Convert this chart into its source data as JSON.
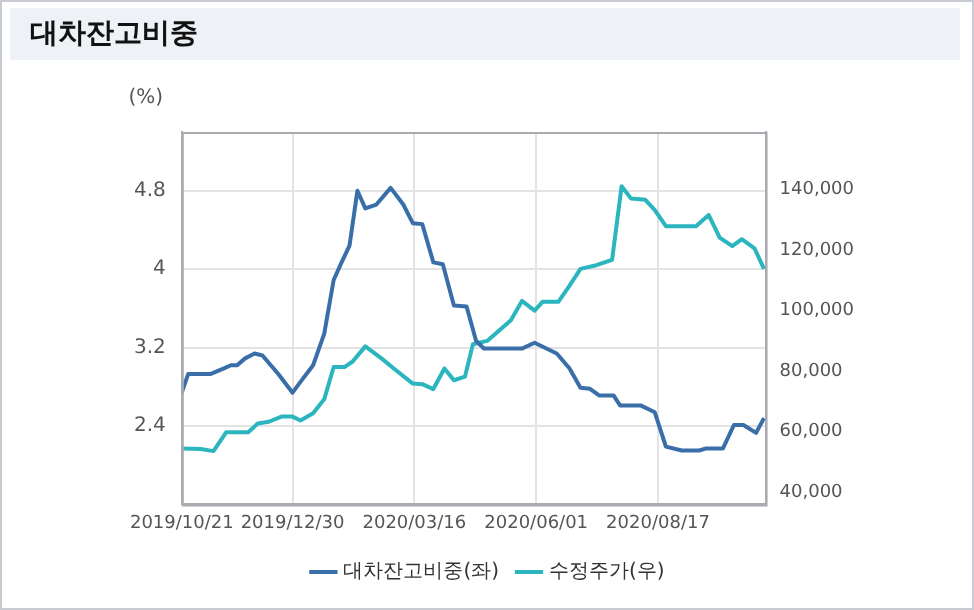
{
  "chart_data": {
    "type": "line",
    "title": "대차잔고비중",
    "ylabel": "(%)",
    "xlim": [
      "2019-10-21",
      "2020-10-24"
    ],
    "xticks": [
      {
        "value": "2019-10-21",
        "label": "2019/10/21"
      },
      {
        "value": "2019-12-30",
        "label": "2019/12/30"
      },
      {
        "value": "2020-03-16",
        "label": "2020/03/16"
      },
      {
        "value": "2020-06-01",
        "label": "2020/06/01"
      },
      {
        "value": "2020-08-17",
        "label": "2020/08/17"
      }
    ],
    "ylim": [
      1.6,
      5.4
    ],
    "yticks": [
      2.4,
      3.2,
      4,
      4.8
    ],
    "y2lim": [
      36000,
      159000
    ],
    "y2ticks": [
      {
        "value": 40000,
        "label": "40,000"
      },
      {
        "value": 60000,
        "label": "60,000"
      },
      {
        "value": 80000,
        "label": "80,000"
      },
      {
        "value": 100000,
        "label": "100,000"
      },
      {
        "value": 120000,
        "label": "120,000"
      },
      {
        "value": 140000,
        "label": "140,000"
      }
    ],
    "grid": true,
    "legend": "bottom",
    "marker": "none",
    "line_style": "solid",
    "series": [
      {
        "name": "대차잔고비중(좌)",
        "color": "#3a6ea8",
        "x": [
          "2019-10-21",
          "2019-10-25",
          "2019-11-08",
          "2019-11-17",
          "2019-11-21",
          "2019-11-25",
          "2019-11-30",
          "2019-12-06",
          "2019-12-11",
          "2019-12-21",
          "2019-12-30",
          "2020-01-04",
          "2020-01-12",
          "2020-01-19",
          "2020-01-25",
          "2020-01-30",
          "2020-02-04",
          "2020-02-09",
          "2020-02-14",
          "2020-02-21",
          "2020-03-01",
          "2020-03-09",
          "2020-03-15",
          "2020-03-21",
          "2020-03-28",
          "2020-04-03",
          "2020-04-10",
          "2020-04-18",
          "2020-04-24",
          "2020-04-29",
          "2020-05-10",
          "2020-05-23",
          "2020-05-31",
          "2020-06-14",
          "2020-06-22",
          "2020-06-29",
          "2020-07-05",
          "2020-07-11",
          "2020-07-20",
          "2020-07-24",
          "2020-08-06",
          "2020-08-15",
          "2020-08-22",
          "2020-09-01",
          "2020-09-12",
          "2020-09-16",
          "2020-09-27",
          "2020-10-04",
          "2020-10-10",
          "2020-10-18",
          "2020-10-23"
        ],
        "values": [
          2.74,
          2.93,
          2.93,
          2.99,
          3.02,
          3.02,
          3.09,
          3.14,
          3.12,
          2.93,
          2.74,
          2.85,
          3.02,
          3.34,
          3.89,
          4.07,
          4.24,
          4.8,
          4.62,
          4.66,
          4.83,
          4.66,
          4.47,
          4.46,
          4.07,
          4.05,
          3.63,
          3.62,
          3.27,
          3.19,
          3.19,
          3.19,
          3.25,
          3.14,
          2.99,
          2.79,
          2.78,
          2.71,
          2.71,
          2.61,
          2.61,
          2.54,
          2.19,
          2.15,
          2.15,
          2.17,
          2.17,
          2.41,
          2.41,
          2.33,
          2.48
        ]
      },
      {
        "name": "수정주가(우)",
        "color": "#2bb5bf",
        "axis": "y2",
        "x": [
          "2019-10-21",
          "2019-11-02",
          "2019-11-10",
          "2019-11-18",
          "2019-12-02",
          "2019-12-08",
          "2019-12-15",
          "2019-12-23",
          "2019-12-30",
          "2020-01-04",
          "2020-01-12",
          "2020-01-19",
          "2020-01-25",
          "2020-02-01",
          "2020-02-06",
          "2020-02-14",
          "2020-02-24",
          "2020-03-03",
          "2020-03-15",
          "2020-03-21",
          "2020-03-28",
          "2020-04-04",
          "2020-04-10",
          "2020-04-17",
          "2020-04-22",
          "2020-05-01",
          "2020-05-16",
          "2020-05-23",
          "2020-05-31",
          "2020-06-05",
          "2020-06-15",
          "2020-06-22",
          "2020-06-29",
          "2020-07-09",
          "2020-07-19",
          "2020-07-25",
          "2020-07-31",
          "2020-08-09",
          "2020-08-15",
          "2020-08-22",
          "2020-09-10",
          "2020-09-18",
          "2020-09-25",
          "2020-10-03",
          "2020-10-09",
          "2020-10-17",
          "2020-10-23"
        ],
        "values": [
          54500,
          54300,
          53600,
          59800,
          59800,
          62700,
          63300,
          65000,
          65000,
          63700,
          66100,
          70700,
          81400,
          81400,
          83200,
          88200,
          84300,
          80900,
          75900,
          75700,
          74100,
          80900,
          77000,
          78200,
          88900,
          90000,
          96800,
          103200,
          100000,
          102900,
          102900,
          108200,
          113800,
          115000,
          116800,
          141100,
          137000,
          136600,
          133200,
          127900,
          127900,
          131600,
          124100,
          121300,
          123600,
          120600,
          113800
        ]
      }
    ]
  }
}
